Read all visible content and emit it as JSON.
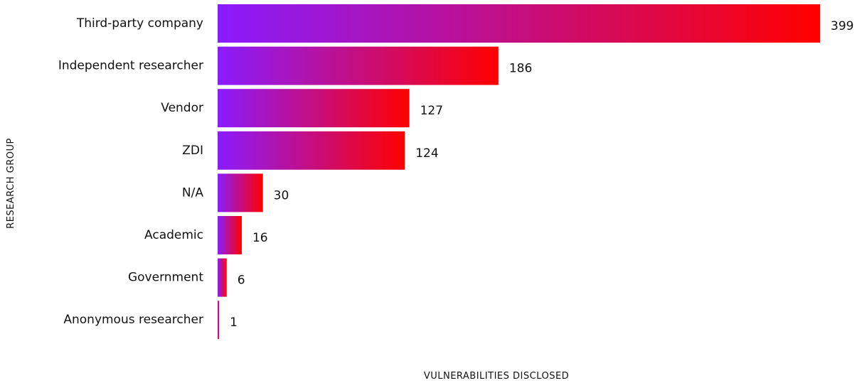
{
  "chart_data": {
    "type": "bar",
    "orientation": "horizontal",
    "categories": [
      "Third-party company",
      "Independent researcher",
      "Vendor",
      "ZDI",
      "N/A",
      "Academic",
      "Government",
      "Anonymous researcher"
    ],
    "values": [
      399,
      186,
      127,
      124,
      30,
      16,
      6,
      1
    ],
    "xlabel": "VULNERABILITIES DISCLOSED",
    "ylabel": "RESEARCH GROUP",
    "xlim": [
      0,
      399
    ],
    "grid": false,
    "legend": "none",
    "bar_gradient": {
      "start": "#8a1cff",
      "end": "#ff0000"
    }
  }
}
